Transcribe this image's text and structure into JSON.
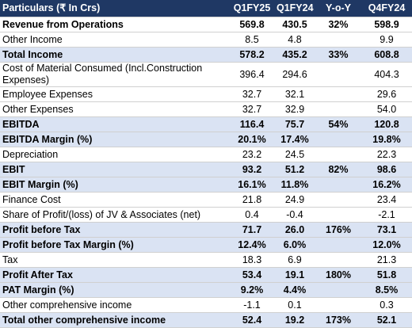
{
  "table": {
    "header": {
      "label": "Particulars (₹ In Crs)",
      "q1fy25": "Q1FY25",
      "q1fy24": "Q1FY24",
      "yoy": "Y-o-Y",
      "q4fy24": "Q4FY24"
    },
    "rows": [
      {
        "label": "Revenue from Operations",
        "q1fy25": "569.8",
        "q1fy24": "430.5",
        "yoy": "32%",
        "q4fy24": "598.9"
      },
      {
        "label": "Other Income",
        "q1fy25": "8.5",
        "q1fy24": "4.8",
        "q4fy24": "9.9"
      },
      {
        "label": "Total Income",
        "q1fy25": "578.2",
        "q1fy24": "435.2",
        "yoy": "33%",
        "q4fy24": "608.8"
      },
      {
        "label": "Cost of Material Consumed (Incl.Construction Expenses)",
        "q1fy25": "396.4",
        "q1fy24": "294.6",
        "q4fy24": "404.3"
      },
      {
        "label": "Employee Expenses",
        "q1fy25": "32.7",
        "q1fy24": "32.1",
        "q4fy24": "29.6"
      },
      {
        "label": "Other Expenses",
        "q1fy25": "32.7",
        "q1fy24": "32.9",
        "q4fy24": "54.0"
      },
      {
        "label": "EBITDA",
        "q1fy25": "116.4",
        "q1fy24": "75.7",
        "yoy": "54%",
        "q4fy24": "120.8"
      },
      {
        "label": "EBITDA Margin (%)",
        "q1fy25": "20.1%",
        "q1fy24": "17.4%",
        "q4fy24": "19.8%"
      },
      {
        "label": "Depreciation",
        "q1fy25": "23.2",
        "q1fy24": "24.5",
        "q4fy24": "22.3"
      },
      {
        "label": "EBIT",
        "q1fy25": "93.2",
        "q1fy24": "51.2",
        "yoy": "82%",
        "q4fy24": "98.6"
      },
      {
        "label": "EBIT Margin (%)",
        "q1fy25": "16.1%",
        "q1fy24": "11.8%",
        "q4fy24": "16.2%"
      },
      {
        "label": "Finance Cost",
        "q1fy25": "21.8",
        "q1fy24": "24.9",
        "q4fy24": "23.4"
      },
      {
        "label": "Share of Profit/(loss) of JV & Associates (net)",
        "q1fy25": "0.4",
        "q1fy24": "-0.4",
        "q4fy24": "-2.1"
      },
      {
        "label": "Profit before Tax",
        "q1fy25": "71.7",
        "q1fy24": "26.0",
        "yoy": "176%",
        "q4fy24": "73.1"
      },
      {
        "label": "Profit before Tax Margin (%)",
        "q1fy25": "12.4%",
        "q1fy24": "6.0%",
        "q4fy24": "12.0%"
      },
      {
        "label": "Tax",
        "q1fy25": "18.3",
        "q1fy24": "6.9",
        "q4fy24": "21.3"
      },
      {
        "label": "Profit After Tax",
        "q1fy25": "53.4",
        "q1fy24": "19.1",
        "yoy": "180%",
        "q4fy24": "51.8"
      },
      {
        "label": "PAT Margin (%)",
        "q1fy25": "9.2%",
        "q1fy24": "4.4%",
        "q4fy24": "8.5%"
      },
      {
        "label": "Other comprehensive income",
        "q1fy25": "-1.1",
        "q1fy24": "0.1",
        "q4fy24": "0.3"
      },
      {
        "label": "Total other comprehensive income",
        "q1fy25": "52.4",
        "q1fy24": "19.2",
        "yoy": "173%",
        "q4fy24": "52.1"
      }
    ]
  }
}
